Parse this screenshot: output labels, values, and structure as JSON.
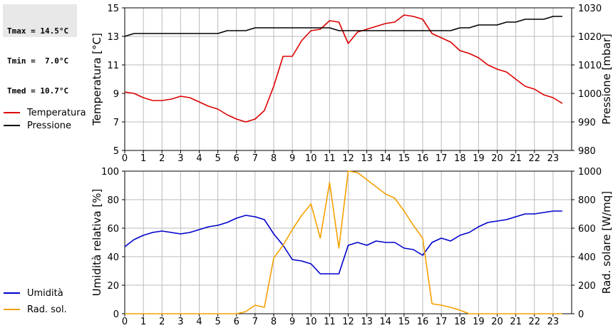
{
  "stats": {
    "tmax": "Tmax = 14.5°C",
    "tmin": "Tmin =  7.0°C",
    "tmed": "Tmed = 10.7°C"
  },
  "colors": {
    "temperature": "#dd0000",
    "pressure": "#000000",
    "humidity": "#0000cc",
    "radiation": "#f5a000",
    "grid": "#bbbbbb"
  },
  "chart_data": [
    {
      "type": "line",
      "xlim": [
        0,
        24
      ],
      "x_ticks": [
        0,
        1,
        2,
        3,
        4,
        5,
        6,
        7,
        8,
        9,
        10,
        11,
        12,
        13,
        14,
        15,
        16,
        17,
        18,
        19,
        20,
        21,
        22,
        23
      ],
      "ylabel": "Temperatura [°C]",
      "ylim": [
        5,
        15
      ],
      "y_ticks": [
        5,
        7,
        9,
        11,
        13,
        15
      ],
      "y2label": "Pressione [mbar]",
      "y2lim": [
        980,
        1030
      ],
      "y2_ticks": [
        980,
        990,
        1000,
        1010,
        1020,
        1030
      ],
      "grid": true,
      "legend_position": "left",
      "series": [
        {
          "name": "Temperatura",
          "axis": "left",
          "x": [
            0,
            0.5,
            1,
            1.5,
            2,
            2.5,
            3,
            3.5,
            4,
            4.5,
            5,
            5.5,
            6,
            6.5,
            7,
            7.5,
            8,
            8.5,
            9,
            9.5,
            10,
            10.5,
            11,
            11.5,
            12,
            12.5,
            13,
            13.5,
            14,
            14.5,
            15,
            15.5,
            16,
            16.5,
            17,
            17.5,
            18,
            18.5,
            19,
            19.5,
            20,
            20.5,
            21,
            21.5,
            22,
            22.5,
            23,
            23.5
          ],
          "y": [
            9.1,
            9.0,
            8.7,
            8.5,
            8.5,
            8.6,
            8.8,
            8.7,
            8.4,
            8.1,
            7.9,
            7.5,
            7.2,
            7.0,
            7.2,
            7.8,
            9.5,
            11.6,
            11.6,
            12.7,
            13.4,
            13.5,
            14.1,
            14.0,
            12.5,
            13.3,
            13.5,
            13.7,
            13.9,
            14.0,
            14.5,
            14.4,
            14.2,
            13.2,
            12.9,
            12.6,
            12.0,
            11.8,
            11.5,
            11.0,
            10.7,
            10.5,
            10.0,
            9.5,
            9.3,
            8.9,
            8.7,
            8.3
          ]
        },
        {
          "name": "Pressione",
          "axis": "right",
          "x": [
            0,
            0.5,
            1,
            1.5,
            2,
            2.5,
            3,
            3.5,
            4,
            4.5,
            5,
            5.5,
            6,
            6.5,
            7,
            7.5,
            8,
            8.5,
            9,
            9.5,
            10,
            10.5,
            11,
            11.5,
            12,
            12.5,
            13,
            13.5,
            14,
            14.5,
            15,
            15.5,
            16,
            16.5,
            17,
            17.5,
            18,
            18.5,
            19,
            19.5,
            20,
            20.5,
            21,
            21.5,
            22,
            22.5,
            23,
            23.5
          ],
          "y": [
            1020,
            1021,
            1021,
            1021,
            1021,
            1021,
            1021,
            1021,
            1021,
            1021,
            1021,
            1022,
            1022,
            1022,
            1023,
            1023,
            1023,
            1023,
            1023,
            1023,
            1023,
            1023,
            1023,
            1022,
            1022,
            1022,
            1022,
            1022,
            1022,
            1022,
            1022,
            1022,
            1022,
            1022,
            1022,
            1022,
            1023,
            1023,
            1024,
            1024,
            1024,
            1025,
            1025,
            1026,
            1026,
            1026,
            1027,
            1027
          ]
        }
      ]
    },
    {
      "type": "line",
      "xlim": [
        0,
        24
      ],
      "x_ticks": [
        0,
        1,
        2,
        3,
        4,
        5,
        6,
        7,
        8,
        9,
        10,
        11,
        12,
        13,
        14,
        15,
        16,
        17,
        18,
        19,
        20,
        21,
        22,
        23
      ],
      "ylabel": "Umidità relativa [%]",
      "ylim": [
        0,
        100
      ],
      "y_ticks": [
        0,
        20,
        40,
        60,
        80,
        100
      ],
      "y2label": "Rad. solare [W/mq]",
      "y2lim": [
        0,
        1000
      ],
      "y2_ticks": [
        0,
        200,
        400,
        600,
        800,
        1000
      ],
      "grid": true,
      "legend_position": "left",
      "series": [
        {
          "name": "Umidità",
          "axis": "left",
          "x": [
            0,
            0.5,
            1,
            1.5,
            2,
            2.5,
            3,
            3.5,
            4,
            4.5,
            5,
            5.5,
            6,
            6.5,
            7,
            7.5,
            8,
            8.5,
            9,
            9.5,
            10,
            10.5,
            11,
            11.5,
            12,
            12.5,
            13,
            13.5,
            14,
            14.5,
            15,
            15.5,
            16,
            16.5,
            17,
            17.5,
            18,
            18.5,
            19,
            19.5,
            20,
            20.5,
            21,
            21.5,
            22,
            22.5,
            23,
            23.5
          ],
          "y": [
            47,
            52,
            55,
            57,
            58,
            57,
            56,
            57,
            59,
            61,
            62,
            64,
            67,
            69,
            68,
            66,
            56,
            48,
            38,
            37,
            35,
            28,
            28,
            28,
            48,
            50,
            48,
            51,
            50,
            50,
            46,
            45,
            41,
            50,
            53,
            51,
            55,
            57,
            61,
            64,
            65,
            66,
            68,
            70,
            70,
            71,
            72,
            72
          ]
        },
        {
          "name": "Rad. sol.",
          "axis": "right",
          "x": [
            0,
            1,
            2,
            3,
            4,
            5,
            6,
            6.5,
            7,
            7.5,
            8,
            8.5,
            9,
            9.5,
            10,
            10.5,
            11,
            11.5,
            12,
            12.5,
            13,
            13.5,
            14,
            14.5,
            15,
            15.5,
            16,
            16.5,
            17,
            17.5,
            18,
            18.5,
            19,
            20,
            21,
            22,
            23,
            23.5
          ],
          "y": [
            0,
            0,
            0,
            0,
            0,
            0,
            0,
            15,
            60,
            45,
            390,
            480,
            590,
            690,
            770,
            530,
            920,
            460,
            1010,
            990,
            940,
            890,
            840,
            810,
            720,
            620,
            530,
            70,
            60,
            45,
            25,
            0,
            0,
            0,
            0,
            0,
            0,
            0
          ]
        }
      ]
    }
  ]
}
